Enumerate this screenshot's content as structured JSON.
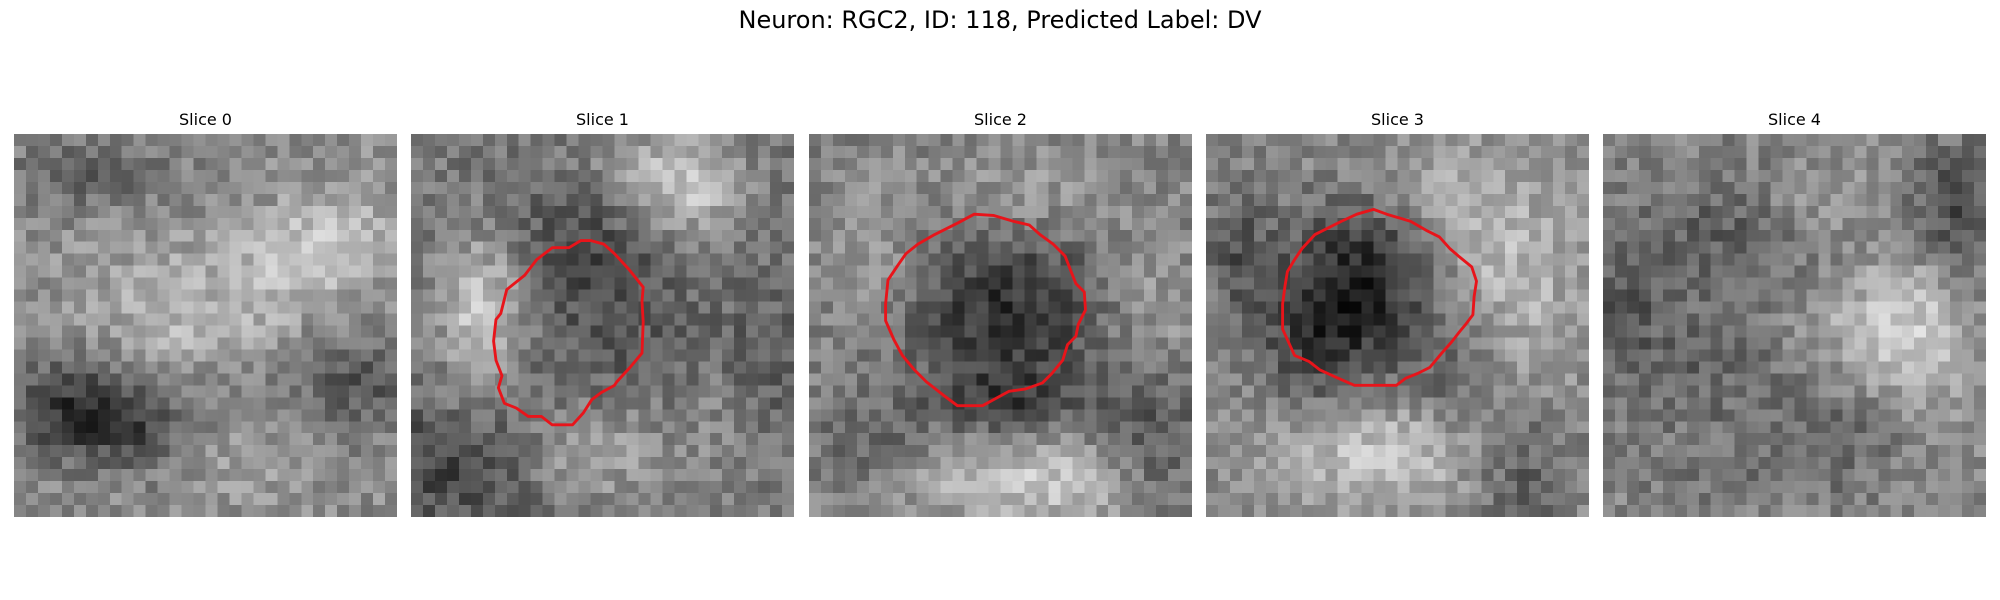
{
  "figure": {
    "title": "Neuron: RGC2, ID: 118, Predicted Label: DV"
  },
  "panels": [
    {
      "title": "Slice 0",
      "has_contour": false
    },
    {
      "title": "Slice 1",
      "has_contour": true
    },
    {
      "title": "Slice 2",
      "has_contour": true
    },
    {
      "title": "Slice 3",
      "has_contour": true
    },
    {
      "title": "Slice 4",
      "has_contour": false
    }
  ],
  "colors": {
    "contour": "#e8141a",
    "background": "#ffffff"
  },
  "image": {
    "colormap": "grayscale",
    "grid": "32x32 pixels"
  }
}
